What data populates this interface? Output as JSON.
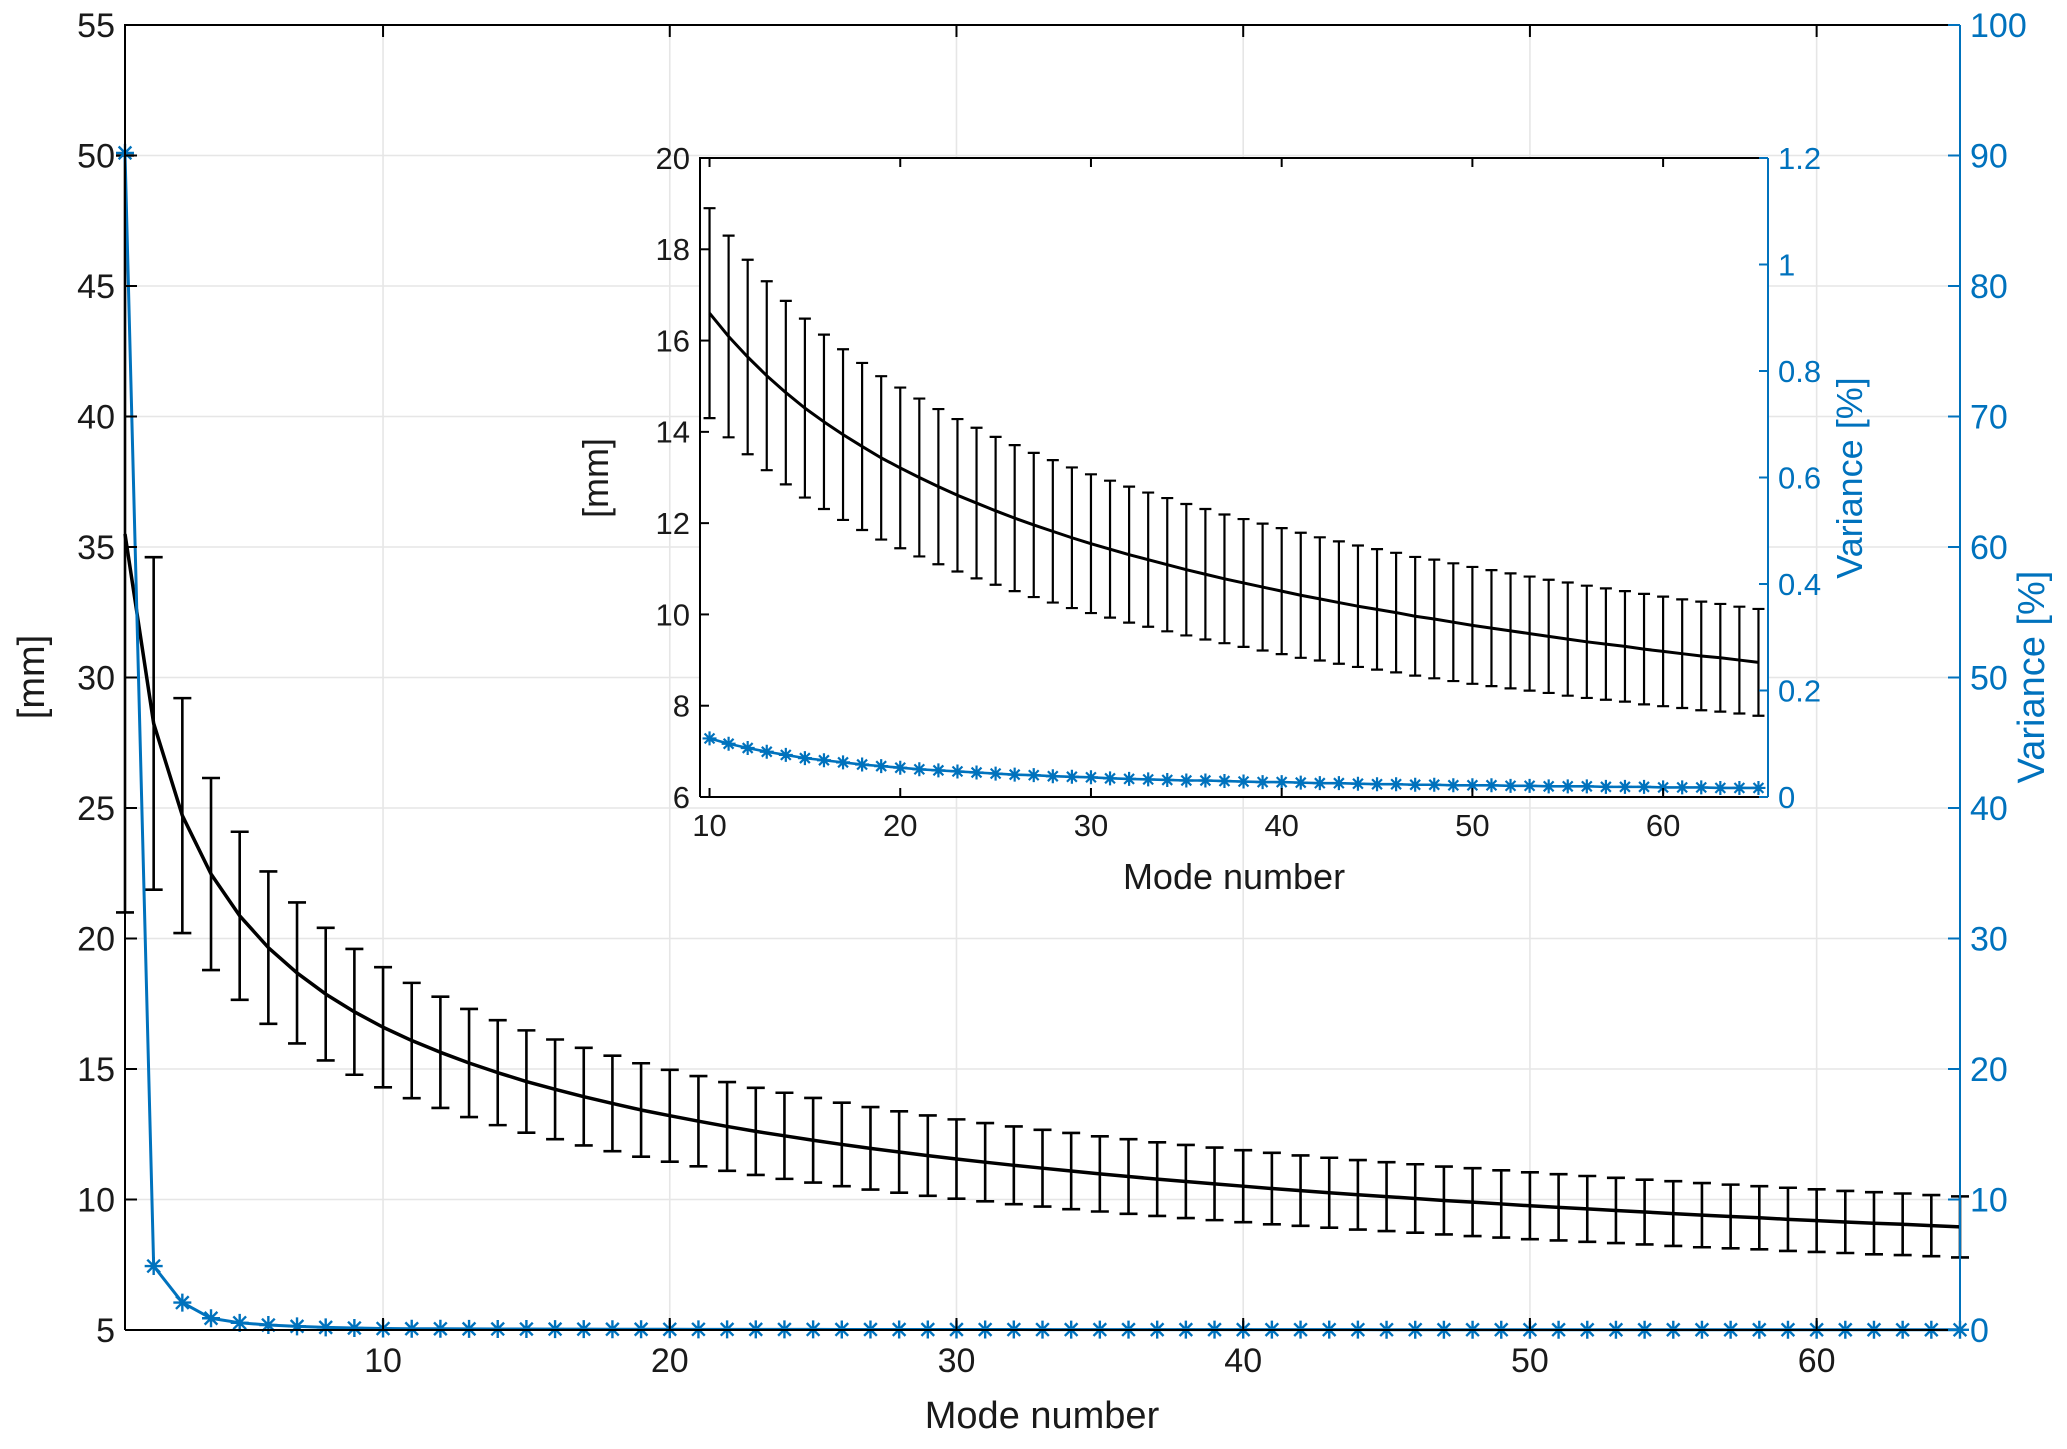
{
  "figure": {
    "background": "#ffffff",
    "accent_blue": "#0072BD",
    "line_black": "#000000",
    "grid_color": "#e6e6e6"
  },
  "chart_data": [
    {
      "id": "main",
      "type": "line",
      "xlabel": "Mode number",
      "ylabel_left": "[mm]",
      "ylabel_right": "Variance [%]",
      "xlim": [
        1,
        65
      ],
      "ylim_left": [
        5,
        55
      ],
      "ylim_right": [
        0,
        100
      ],
      "grid": true,
      "legend": "none",
      "mode_range": [
        1,
        65
      ],
      "xticks": {
        "values": [
          10,
          20,
          30,
          40,
          50,
          60
        ],
        "labels": [
          "10",
          "20",
          "30",
          "40",
          "50",
          "60"
        ]
      },
      "yticks_left": {
        "values": [
          5,
          10,
          15,
          20,
          25,
          30,
          35,
          40,
          45,
          50,
          55
        ],
        "labels": [
          "5",
          "10",
          "15",
          "20",
          "25",
          "30",
          "35",
          "40",
          "45",
          "50",
          "55"
        ]
      },
      "yticks_right": {
        "values": [
          0,
          10,
          20,
          30,
          40,
          50,
          60,
          70,
          80,
          90,
          100
        ],
        "labels": [
          "0",
          "10",
          "20",
          "30",
          "40",
          "50",
          "60",
          "70",
          "80",
          "90",
          "100"
        ]
      },
      "modes": [
        1,
        2,
        3,
        4,
        5,
        6,
        7,
        8,
        9,
        10,
        11,
        12,
        13,
        14,
        15,
        16,
        17,
        18,
        19,
        20,
        21,
        22,
        23,
        24,
        25,
        26,
        27,
        28,
        29,
        30,
        31,
        32,
        33,
        34,
        35,
        36,
        37,
        38,
        39,
        40,
        41,
        42,
        43,
        44,
        45,
        46,
        47,
        48,
        49,
        50,
        51,
        52,
        53,
        54,
        55,
        56,
        57,
        58,
        59,
        60,
        61,
        62,
        63,
        64,
        65
      ],
      "series": [
        {
          "name": "mean-distance-mm",
          "axis": "left",
          "color": "#000000",
          "style": "line-with-errorbars",
          "marker": "none",
          "values": [
            35.5,
            28.24,
            24.71,
            22.47,
            20.87,
            19.65,
            18.68,
            17.87,
            17.19,
            16.6,
            16.09,
            15.64,
            15.23,
            14.86,
            14.52,
            14.22,
            13.94,
            13.68,
            13.43,
            13.21,
            13.0,
            12.8,
            12.61,
            12.44,
            12.27,
            12.11,
            11.96,
            11.82,
            11.68,
            11.55,
            11.43,
            11.31,
            11.2,
            11.09,
            10.98,
            10.88,
            10.78,
            10.69,
            10.6,
            10.51,
            10.42,
            10.34,
            10.26,
            10.18,
            10.11,
            10.04,
            9.96,
            9.9,
            9.83,
            9.76,
            9.7,
            9.64,
            9.58,
            9.52,
            9.46,
            9.4,
            9.35,
            9.3,
            9.24,
            9.19,
            9.14,
            9.09,
            9.05,
            9.0,
            8.95
          ],
          "errors": [
            14.5,
            6.37,
            4.5,
            3.68,
            3.22,
            2.92,
            2.7,
            2.54,
            2.41,
            2.3,
            2.21,
            2.13,
            2.07,
            2.01,
            1.96,
            1.91,
            1.87,
            1.83,
            1.79,
            1.76,
            1.73,
            1.7,
            1.67,
            1.65,
            1.62,
            1.6,
            1.58,
            1.56,
            1.54,
            1.52,
            1.5,
            1.49,
            1.47,
            1.46,
            1.44,
            1.43,
            1.41,
            1.4,
            1.39,
            1.38,
            1.37,
            1.35,
            1.34,
            1.33,
            1.32,
            1.31,
            1.3,
            1.3,
            1.29,
            1.28,
            1.27,
            1.26,
            1.25,
            1.24,
            1.24,
            1.23,
            1.22,
            1.21,
            1.21,
            1.2,
            1.19,
            1.19,
            1.18,
            1.17,
            1.17
          ]
        },
        {
          "name": "variance-percent",
          "axis": "right",
          "color": "#0072BD",
          "style": "line-with-asterisk-markers",
          "marker": "*",
          "values": [
            90.2,
            4.9,
            2.1,
            0.9,
            0.55,
            0.38,
            0.28,
            0.2,
            0.15,
            0.11,
            0.1,
            0.092,
            0.085,
            0.079,
            0.073,
            0.069,
            0.065,
            0.061,
            0.058,
            0.055,
            0.052,
            0.05,
            0.048,
            0.046,
            0.044,
            0.042,
            0.041,
            0.039,
            0.038,
            0.037,
            0.035,
            0.034,
            0.033,
            0.032,
            0.031,
            0.031,
            0.03,
            0.029,
            0.028,
            0.028,
            0.027,
            0.026,
            0.026,
            0.025,
            0.024,
            0.024,
            0.023,
            0.023,
            0.022,
            0.022,
            0.022,
            0.021,
            0.021,
            0.02,
            0.02,
            0.02,
            0.019,
            0.019,
            0.019,
            0.018,
            0.018,
            0.018,
            0.017,
            0.017,
            0.017
          ]
        }
      ]
    },
    {
      "id": "inset",
      "type": "line",
      "xlabel": "Mode number",
      "ylabel_left": "[mm]",
      "ylabel_right": "Variance [%]",
      "xlim": [
        9.5,
        65.5
      ],
      "ylim_left": [
        6,
        20
      ],
      "ylim_right": [
        0,
        1.2
      ],
      "grid": false,
      "mode_range": [
        10,
        65
      ],
      "xticks": {
        "values": [
          10,
          20,
          30,
          40,
          50,
          60
        ],
        "labels": [
          "10",
          "20",
          "30",
          "40",
          "50",
          "60"
        ]
      },
      "yticks_left": {
        "values": [
          6,
          8,
          10,
          12,
          14,
          16,
          18,
          20
        ],
        "labels": [
          "6",
          "8",
          "10",
          "12",
          "14",
          "16",
          "18",
          "20"
        ]
      },
      "yticks_right": {
        "values": [
          0,
          0.2,
          0.4,
          0.6,
          0.8,
          1,
          1.2
        ],
        "labels": [
          "0",
          "0.2",
          "0.4",
          "0.6",
          "0.8",
          "1",
          "1.2"
        ]
      }
    }
  ]
}
